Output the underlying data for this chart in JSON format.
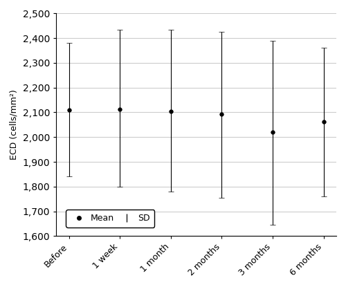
{
  "categories": [
    "Before",
    "1 week",
    "1 month",
    "2 months",
    "3 months",
    "6 months"
  ],
  "means": [
    2110,
    2112,
    2105,
    2093,
    2020,
    2063
  ],
  "upper": [
    2380,
    2435,
    2435,
    2425,
    2390,
    2360
  ],
  "lower": [
    1840,
    1800,
    1780,
    1755,
    1645,
    1760
  ],
  "ylim": [
    1600,
    2500
  ],
  "yticks": [
    1600,
    1700,
    1800,
    1900,
    2000,
    2100,
    2200,
    2300,
    2400,
    2500
  ],
  "ylabel": "ECD (cells/mm²)",
  "background_color": "#ffffff",
  "grid_color": "#cccccc",
  "marker_color": "#000000",
  "errorbar_color": "#000000",
  "capsize": 3,
  "markersize": 4,
  "legend_label_mean": "Mean",
  "legend_label_sd": "SD"
}
